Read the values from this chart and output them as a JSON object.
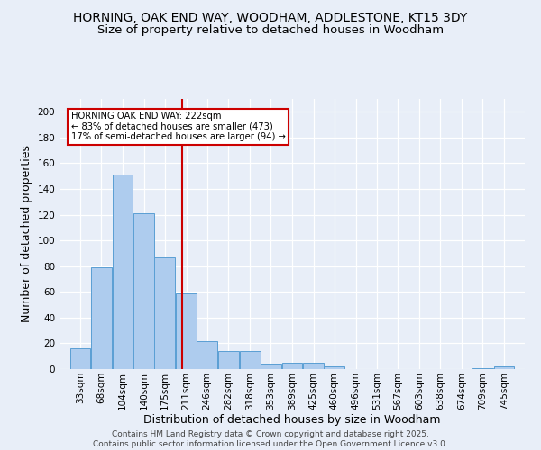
{
  "title_line1": "HORNING, OAK END WAY, WOODHAM, ADDLESTONE, KT15 3DY",
  "title_line2": "Size of property relative to detached houses in Woodham",
  "xlabel": "Distribution of detached houses by size in Woodham",
  "ylabel": "Number of detached properties",
  "footer_line1": "Contains HM Land Registry data © Crown copyright and database right 2025.",
  "footer_line2": "Contains public sector information licensed under the Open Government Licence v3.0.",
  "bin_labels": [
    "33sqm",
    "68sqm",
    "104sqm",
    "140sqm",
    "175sqm",
    "211sqm",
    "246sqm",
    "282sqm",
    "318sqm",
    "353sqm",
    "389sqm",
    "425sqm",
    "460sqm",
    "496sqm",
    "531sqm",
    "567sqm",
    "603sqm",
    "638sqm",
    "674sqm",
    "709sqm",
    "745sqm"
  ],
  "bin_edges": [
    33,
    68,
    104,
    140,
    175,
    211,
    246,
    282,
    318,
    353,
    389,
    425,
    460,
    496,
    531,
    567,
    603,
    638,
    674,
    709,
    745
  ],
  "bar_values": [
    16,
    79,
    151,
    121,
    87,
    59,
    22,
    14,
    14,
    4,
    5,
    5,
    2,
    0,
    0,
    0,
    0,
    0,
    0,
    1,
    2
  ],
  "bar_color": "#aeccee",
  "bar_edge_color": "#5a9fd4",
  "vline_x": 222,
  "vline_color": "#cc0000",
  "annotation_title": "HORNING OAK END WAY: 222sqm",
  "annotation_line1": "← 83% of detached houses are smaller (473)",
  "annotation_line2": "17% of semi-detached houses are larger (94) →",
  "annotation_box_color": "#cc0000",
  "annotation_fill": "#ffffff",
  "ylim": [
    0,
    210
  ],
  "yticks": [
    0,
    20,
    40,
    60,
    80,
    100,
    120,
    140,
    160,
    180,
    200
  ],
  "background_color": "#e8eef8",
  "grid_color": "#ffffff",
  "title_fontsize": 10,
  "subtitle_fontsize": 9.5,
  "axis_label_fontsize": 9,
  "tick_fontsize": 7.5,
  "footer_fontsize": 6.5
}
